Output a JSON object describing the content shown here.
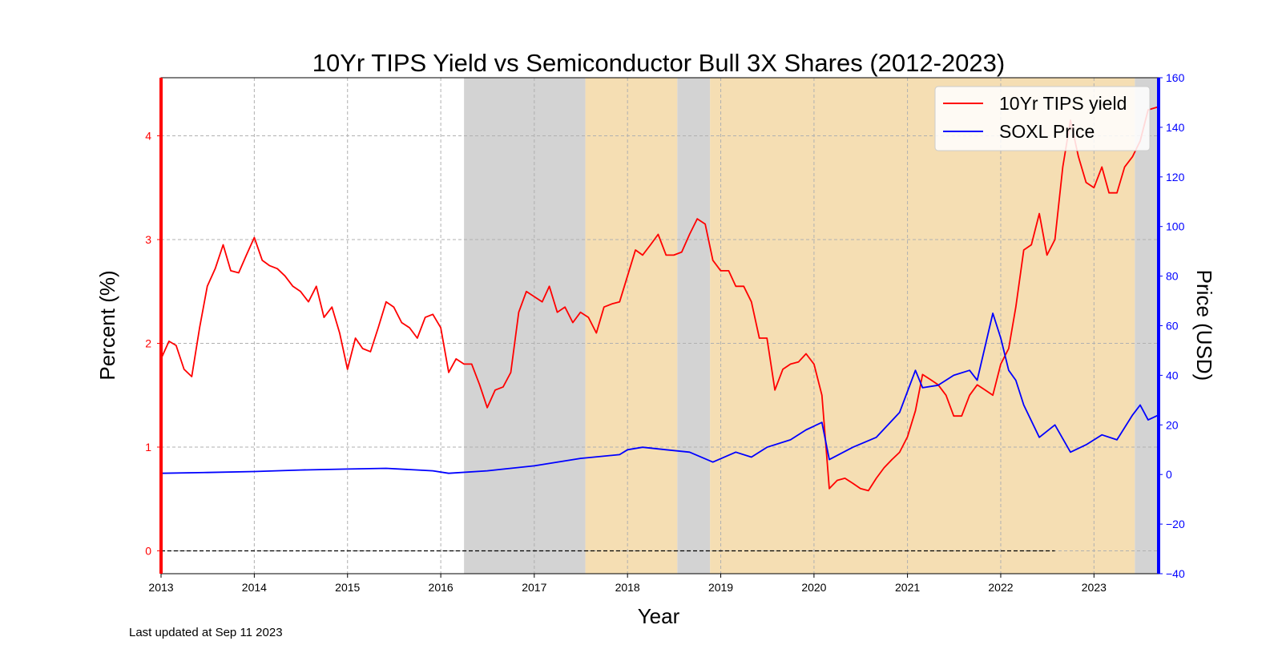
{
  "chart_data": {
    "type": "line",
    "title": "10Yr TIPS Yield vs Semiconductor Bull 3X Shares (2012-2023)",
    "xlabel": "Year",
    "ylabel_left": "Percent (%)",
    "ylabel_right": "Price (USD)",
    "x_range": [
      "2013-01-01",
      "2023-09-11"
    ],
    "x_ticks": [
      "2013",
      "2014",
      "2015",
      "2016",
      "2017",
      "2018",
      "2019",
      "2020",
      "2021",
      "2022",
      "2023"
    ],
    "ylim_left": [
      -0.22,
      4.56
    ],
    "yticks_left": [
      "0",
      "1",
      "2",
      "3",
      "4"
    ],
    "ylim_right": [
      -40,
      160
    ],
    "yticks_right": [
      "−40",
      "−20",
      "0",
      "20",
      "40",
      "60",
      "80",
      "100",
      "120",
      "140",
      "160"
    ],
    "grid": true,
    "legend_position": "top-right",
    "colors": {
      "left_axis": "#ff0000",
      "right_axis": "#0000ff",
      "shade_gray": "#d3d3d3",
      "shade_tan": "#f5deb3"
    },
    "shaded_regions": [
      {
        "start": "2016-04-01",
        "end": "2017-07-20",
        "color": "gray"
      },
      {
        "start": "2017-07-20",
        "end": "2018-07-15",
        "color": "tan"
      },
      {
        "start": "2018-07-15",
        "end": "2018-11-20",
        "color": "gray"
      },
      {
        "start": "2018-11-20",
        "end": "2023-06-10",
        "color": "tan"
      },
      {
        "start": "2023-06-10",
        "end": "2023-09-11",
        "color": "gray"
      }
    ],
    "reference_line": {
      "y": 0,
      "start": "2013-01-01",
      "end": "2022-08-01",
      "style": "dashed"
    },
    "series": [
      {
        "name": "10Yr TIPS yield",
        "axis": "left",
        "color": "#ff0000",
        "points": [
          [
            "2013-01-01",
            1.85
          ],
          [
            "2013-02-01",
            2.02
          ],
          [
            "2013-03-01",
            1.98
          ],
          [
            "2013-04-01",
            1.75
          ],
          [
            "2013-05-01",
            1.68
          ],
          [
            "2013-06-01",
            2.15
          ],
          [
            "2013-07-01",
            2.55
          ],
          [
            "2013-08-01",
            2.72
          ],
          [
            "2013-09-01",
            2.95
          ],
          [
            "2013-10-01",
            2.7
          ],
          [
            "2013-11-01",
            2.68
          ],
          [
            "2013-12-01",
            2.85
          ],
          [
            "2014-01-01",
            3.02
          ],
          [
            "2014-02-01",
            2.8
          ],
          [
            "2014-03-01",
            2.75
          ],
          [
            "2014-04-01",
            2.72
          ],
          [
            "2014-05-01",
            2.65
          ],
          [
            "2014-06-01",
            2.55
          ],
          [
            "2014-07-01",
            2.5
          ],
          [
            "2014-08-01",
            2.4
          ],
          [
            "2014-09-01",
            2.55
          ],
          [
            "2014-10-01",
            2.25
          ],
          [
            "2014-11-01",
            2.35
          ],
          [
            "2014-12-01",
            2.1
          ],
          [
            "2015-01-01",
            1.75
          ],
          [
            "2015-02-01",
            2.05
          ],
          [
            "2015-03-01",
            1.95
          ],
          [
            "2015-04-01",
            1.92
          ],
          [
            "2015-05-01",
            2.15
          ],
          [
            "2015-06-01",
            2.4
          ],
          [
            "2015-07-01",
            2.35
          ],
          [
            "2015-08-01",
            2.2
          ],
          [
            "2015-09-01",
            2.15
          ],
          [
            "2015-10-01",
            2.05
          ],
          [
            "2015-11-01",
            2.25
          ],
          [
            "2015-12-01",
            2.28
          ],
          [
            "2016-01-01",
            2.15
          ],
          [
            "2016-02-01",
            1.72
          ],
          [
            "2016-03-01",
            1.85
          ],
          [
            "2016-04-01",
            1.8
          ],
          [
            "2016-05-01",
            1.8
          ],
          [
            "2016-06-01",
            1.6
          ],
          [
            "2016-07-01",
            1.38
          ],
          [
            "2016-08-01",
            1.55
          ],
          [
            "2016-09-01",
            1.58
          ],
          [
            "2016-10-01",
            1.72
          ],
          [
            "2016-11-01",
            2.3
          ],
          [
            "2016-12-01",
            2.5
          ],
          [
            "2017-01-01",
            2.45
          ],
          [
            "2017-02-01",
            2.4
          ],
          [
            "2017-03-01",
            2.55
          ],
          [
            "2017-04-01",
            2.3
          ],
          [
            "2017-05-01",
            2.35
          ],
          [
            "2017-06-01",
            2.2
          ],
          [
            "2017-07-01",
            2.3
          ],
          [
            "2017-08-01",
            2.25
          ],
          [
            "2017-09-01",
            2.1
          ],
          [
            "2017-10-01",
            2.35
          ],
          [
            "2017-11-01",
            2.38
          ],
          [
            "2017-12-01",
            2.4
          ],
          [
            "2018-01-01",
            2.65
          ],
          [
            "2018-02-01",
            2.9
          ],
          [
            "2018-03-01",
            2.85
          ],
          [
            "2018-04-01",
            2.95
          ],
          [
            "2018-05-01",
            3.05
          ],
          [
            "2018-06-01",
            2.85
          ],
          [
            "2018-07-01",
            2.85
          ],
          [
            "2018-08-01",
            2.88
          ],
          [
            "2018-09-01",
            3.05
          ],
          [
            "2018-10-01",
            3.2
          ],
          [
            "2018-11-01",
            3.15
          ],
          [
            "2018-12-01",
            2.8
          ],
          [
            "2019-01-01",
            2.7
          ],
          [
            "2019-02-01",
            2.7
          ],
          [
            "2019-03-01",
            2.55
          ],
          [
            "2019-04-01",
            2.55
          ],
          [
            "2019-05-01",
            2.4
          ],
          [
            "2019-06-01",
            2.05
          ],
          [
            "2019-07-01",
            2.05
          ],
          [
            "2019-08-01",
            1.55
          ],
          [
            "2019-09-01",
            1.75
          ],
          [
            "2019-10-01",
            1.8
          ],
          [
            "2019-11-01",
            1.82
          ],
          [
            "2019-12-01",
            1.9
          ],
          [
            "2020-01-01",
            1.8
          ],
          [
            "2020-02-01",
            1.5
          ],
          [
            "2020-03-01",
            0.6
          ],
          [
            "2020-04-01",
            0.68
          ],
          [
            "2020-05-01",
            0.7
          ],
          [
            "2020-06-01",
            0.65
          ],
          [
            "2020-07-01",
            0.6
          ],
          [
            "2020-08-01",
            0.58
          ],
          [
            "2020-09-01",
            0.7
          ],
          [
            "2020-10-01",
            0.8
          ],
          [
            "2020-11-01",
            0.88
          ],
          [
            "2020-12-01",
            0.95
          ],
          [
            "2021-01-01",
            1.1
          ],
          [
            "2021-02-01",
            1.35
          ],
          [
            "2021-03-01",
            1.7
          ],
          [
            "2021-04-01",
            1.65
          ],
          [
            "2021-05-01",
            1.6
          ],
          [
            "2021-06-01",
            1.5
          ],
          [
            "2021-07-01",
            1.3
          ],
          [
            "2021-08-01",
            1.3
          ],
          [
            "2021-09-01",
            1.5
          ],
          [
            "2021-10-01",
            1.6
          ],
          [
            "2021-11-01",
            1.55
          ],
          [
            "2021-12-01",
            1.5
          ],
          [
            "2022-01-01",
            1.8
          ],
          [
            "2022-02-01",
            1.95
          ],
          [
            "2022-03-01",
            2.35
          ],
          [
            "2022-04-01",
            2.9
          ],
          [
            "2022-05-01",
            2.95
          ],
          [
            "2022-06-01",
            3.25
          ],
          [
            "2022-07-01",
            2.85
          ],
          [
            "2022-08-01",
            3.0
          ],
          [
            "2022-09-01",
            3.7
          ],
          [
            "2022-10-01",
            4.15
          ],
          [
            "2022-11-01",
            3.8
          ],
          [
            "2022-12-01",
            3.55
          ],
          [
            "2023-01-01",
            3.5
          ],
          [
            "2023-02-01",
            3.7
          ],
          [
            "2023-03-01",
            3.45
          ],
          [
            "2023-04-01",
            3.45
          ],
          [
            "2023-05-01",
            3.7
          ],
          [
            "2023-06-01",
            3.8
          ],
          [
            "2023-07-01",
            3.95
          ],
          [
            "2023-08-01",
            4.25
          ],
          [
            "2023-09-11",
            4.28
          ]
        ]
      },
      {
        "name": "SOXL Price",
        "axis": "right",
        "color": "#0000ff",
        "points": [
          [
            "2013-01-01",
            0.5
          ],
          [
            "2013-07-01",
            0.8
          ],
          [
            "2014-01-01",
            1.2
          ],
          [
            "2014-07-01",
            1.8
          ],
          [
            "2015-01-01",
            2.2
          ],
          [
            "2015-06-01",
            2.5
          ],
          [
            "2015-12-01",
            1.5
          ],
          [
            "2016-02-01",
            0.5
          ],
          [
            "2016-07-01",
            1.5
          ],
          [
            "2017-01-01",
            3.5
          ],
          [
            "2017-07-01",
            6.5
          ],
          [
            "2017-12-01",
            8.0
          ],
          [
            "2018-01-01",
            10.0
          ],
          [
            "2018-03-01",
            11.0
          ],
          [
            "2018-06-01",
            10.0
          ],
          [
            "2018-09-01",
            9.0
          ],
          [
            "2018-12-01",
            5.0
          ],
          [
            "2019-03-01",
            9.0
          ],
          [
            "2019-05-01",
            7.0
          ],
          [
            "2019-07-01",
            11.0
          ],
          [
            "2019-10-01",
            14.0
          ],
          [
            "2019-12-01",
            18.0
          ],
          [
            "2020-02-01",
            21.0
          ],
          [
            "2020-03-01",
            6.0
          ],
          [
            "2020-06-01",
            11.0
          ],
          [
            "2020-09-01",
            15.0
          ],
          [
            "2020-12-01",
            25.0
          ],
          [
            "2021-02-01",
            42.0
          ],
          [
            "2021-03-01",
            35.0
          ],
          [
            "2021-05-01",
            36.0
          ],
          [
            "2021-07-01",
            40.0
          ],
          [
            "2021-09-01",
            42.0
          ],
          [
            "2021-10-01",
            38.0
          ],
          [
            "2021-12-01",
            65.0
          ],
          [
            "2022-01-01",
            55.0
          ],
          [
            "2022-02-01",
            42.0
          ],
          [
            "2022-03-01",
            38.0
          ],
          [
            "2022-04-01",
            28.0
          ],
          [
            "2022-06-01",
            15.0
          ],
          [
            "2022-08-01",
            20.0
          ],
          [
            "2022-10-01",
            9.0
          ],
          [
            "2022-12-01",
            12.0
          ],
          [
            "2023-02-01",
            16.0
          ],
          [
            "2023-04-01",
            14.0
          ],
          [
            "2023-06-01",
            24.0
          ],
          [
            "2023-07-01",
            28.0
          ],
          [
            "2023-08-01",
            22.0
          ],
          [
            "2023-09-11",
            24.0
          ]
        ]
      }
    ]
  },
  "footnote": "Last updated at Sep 11 2023"
}
